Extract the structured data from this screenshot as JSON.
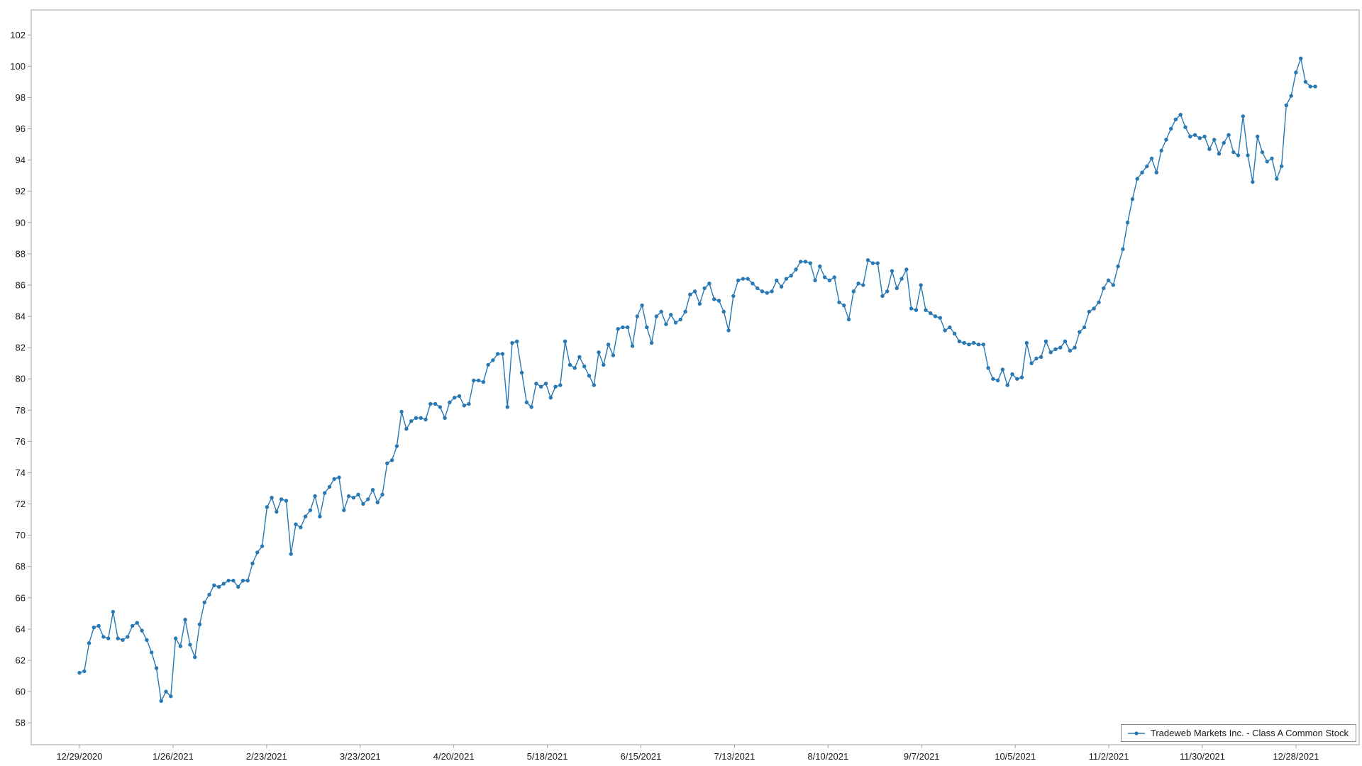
{
  "chart_data": {
    "type": "line",
    "title": "",
    "series_name": "Tradeweb Markets Inc. - Class A Common Stock",
    "line_color": "#2878b4",
    "marker": "circle",
    "axis_color": "#a6a6a6",
    "text_color": "#1a1a1a",
    "grid": false,
    "legend_position": "bottom-right",
    "y_axis": {
      "min": 56.6,
      "max": 103.6,
      "tick_min": 58,
      "tick_max": 102,
      "tick_step": 2
    },
    "x_axis": {
      "tick_labels": [
        "12/29/2020",
        "1/26/2021",
        "2/23/2021",
        "3/23/2021",
        "4/20/2021",
        "5/18/2021",
        "6/15/2021",
        "7/13/2021",
        "8/10/2021",
        "9/7/2021",
        "10/5/2021",
        "11/2/2021",
        "11/30/2021",
        "12/28/2021"
      ],
      "last_tick_index": 253
    },
    "values": [
      61.2,
      61.3,
      63.1,
      64.1,
      64.2,
      63.5,
      63.4,
      65.1,
      63.4,
      63.3,
      63.5,
      64.2,
      64.4,
      63.9,
      63.3,
      62.5,
      61.5,
      59.4,
      60.0,
      59.7,
      63.4,
      62.9,
      64.6,
      63.0,
      62.2,
      64.3,
      65.7,
      66.2,
      66.8,
      66.7,
      66.9,
      67.1,
      67.1,
      66.7,
      67.1,
      67.1,
      68.2,
      68.9,
      69.3,
      71.8,
      72.4,
      71.5,
      72.3,
      72.2,
      68.8,
      70.7,
      70.5,
      71.2,
      71.6,
      72.5,
      71.2,
      72.7,
      73.1,
      73.6,
      73.7,
      71.6,
      72.5,
      72.4,
      72.6,
      72.0,
      72.3,
      72.9,
      72.1,
      72.6,
      74.6,
      74.8,
      75.7,
      77.9,
      76.8,
      77.3,
      77.5,
      77.5,
      77.4,
      78.4,
      78.4,
      78.2,
      77.5,
      78.5,
      78.8,
      78.9,
      78.3,
      78.4,
      79.9,
      79.9,
      79.8,
      80.9,
      81.2,
      81.6,
      81.6,
      78.2,
      82.3,
      82.4,
      80.4,
      78.5,
      78.2,
      79.7,
      79.5,
      79.7,
      78.8,
      79.5,
      79.6,
      82.4,
      80.9,
      80.7,
      81.4,
      80.8,
      80.2,
      79.6,
      81.7,
      80.9,
      82.2,
      81.5,
      83.2,
      83.3,
      83.3,
      82.1,
      84.0,
      84.7,
      83.3,
      82.3,
      84.0,
      84.3,
      83.5,
      84.1,
      83.6,
      83.8,
      84.3,
      85.4,
      85.6,
      84.8,
      85.8,
      86.1,
      85.1,
      85.0,
      84.3,
      83.1,
      85.3,
      86.3,
      86.4,
      86.4,
      86.1,
      85.8,
      85.6,
      85.5,
      85.6,
      86.3,
      85.9,
      86.4,
      86.6,
      87.0,
      87.5,
      87.5,
      87.4,
      86.3,
      87.2,
      86.5,
      86.3,
      86.5,
      84.9,
      84.7,
      83.8,
      85.6,
      86.1,
      86.0,
      87.6,
      87.4,
      87.4,
      85.3,
      85.6,
      86.9,
      85.8,
      86.4,
      87.0,
      84.5,
      84.4,
      86.0,
      84.4,
      84.2,
      84.0,
      83.9,
      83.1,
      83.3,
      82.9,
      82.4,
      82.3,
      82.2,
      82.3,
      82.2,
      82.2,
      80.7,
      80.0,
      79.9,
      80.6,
      79.6,
      80.3,
      80.0,
      80.1,
      82.3,
      81.0,
      81.3,
      81.4,
      82.4,
      81.7,
      81.9,
      82.0,
      82.4,
      81.8,
      82.0,
      83.0,
      83.3,
      84.3,
      84.5,
      84.9,
      85.8,
      86.3,
      86.0,
      87.2,
      88.3,
      90.0,
      91.5,
      92.8,
      93.2,
      93.6,
      94.1,
      93.2,
      94.6,
      95.3,
      96.0,
      96.6,
      96.9,
      96.1,
      95.5,
      95.6,
      95.4,
      95.5,
      94.7,
      95.3,
      94.4,
      95.1,
      95.6,
      94.5,
      94.3,
      96.8,
      94.3,
      92.6,
      95.5,
      94.5,
      93.9,
      94.1,
      92.8,
      93.6,
      97.5,
      98.1,
      99.6,
      100.5,
      99.0,
      98.7,
      98.7
    ]
  }
}
